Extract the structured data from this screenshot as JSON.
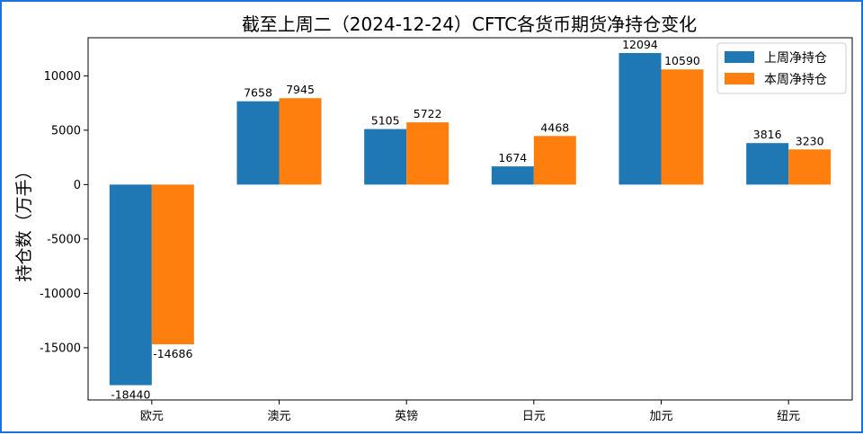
{
  "chart_data": {
    "type": "bar",
    "title": "截至上周二（2024-12-24）CFTC各货币期货净持仓变化",
    "xlabel": "",
    "ylabel": "持仓数（万手）",
    "categories": [
      "欧元",
      "澳元",
      "英镑",
      "日元",
      "加元",
      "纽元"
    ],
    "series": [
      {
        "name": "上周净持仓",
        "color": "#1f77b4",
        "values": [
          -18440,
          7658,
          5105,
          1674,
          12094,
          3816
        ]
      },
      {
        "name": "本周净持仓",
        "color": "#ff7f0e",
        "values": [
          -14686,
          7945,
          5722,
          4468,
          10590,
          3230
        ]
      }
    ],
    "ylim": [
      -19800,
      13500
    ],
    "yticks": [
      -15000,
      -10000,
      -5000,
      0,
      5000,
      10000
    ],
    "grid": false,
    "legend": "top-right"
  }
}
